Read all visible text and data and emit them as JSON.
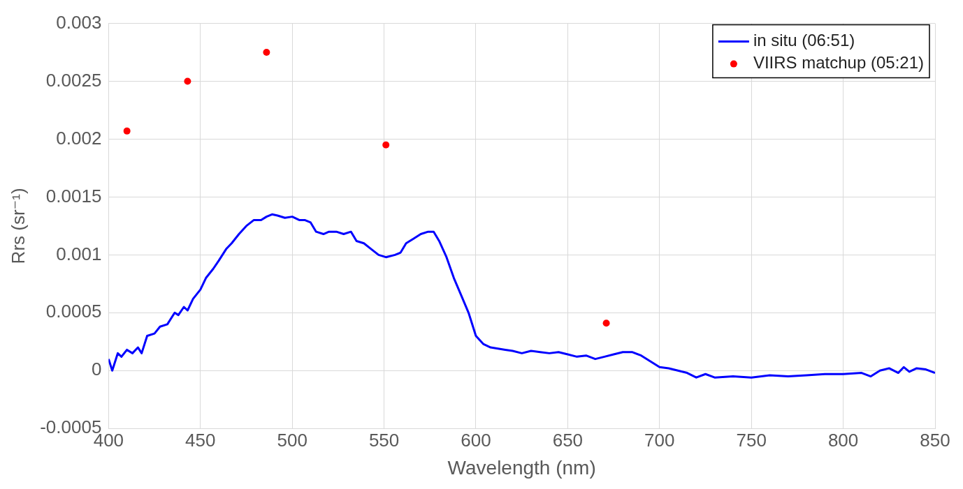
{
  "chart_data": {
    "type": "line",
    "xlabel": "Wavelength (nm)",
    "ylabel": "Rrs (sr⁻¹)",
    "xlim": [
      400,
      850
    ],
    "xticks": [
      400,
      450,
      500,
      550,
      600,
      650,
      700,
      750,
      800,
      850
    ],
    "ylim": [
      -0.0005,
      0.003
    ],
    "yticks": [
      -0.0005,
      0,
      0.0005,
      0.001,
      0.0015,
      0.002,
      0.0025,
      0.003
    ],
    "grid": true,
    "legend": "top right",
    "series": [
      {
        "name": "in situ (06:51)",
        "color": "#0000ff",
        "marker": "none",
        "line_style": "solid",
        "x": [
          400,
          402,
          405,
          407,
          410,
          413,
          416,
          418,
          421,
          425,
          428,
          432,
          436,
          438,
          441,
          443,
          446,
          450,
          453,
          457,
          460,
          464,
          467,
          471,
          475,
          479,
          483,
          486,
          489,
          492,
          496,
          500,
          504,
          507,
          510,
          513,
          517,
          520,
          524,
          528,
          532,
          535,
          539,
          543,
          547,
          551,
          556,
          559,
          562,
          566,
          570,
          574,
          577,
          580,
          584,
          588,
          592,
          596,
          600,
          604,
          608,
          612,
          616,
          620,
          625,
          630,
          635,
          640,
          645,
          650,
          655,
          660,
          665,
          670,
          675,
          680,
          685,
          690,
          695,
          700,
          705,
          710,
          715,
          720,
          725,
          730,
          740,
          750,
          760,
          770,
          780,
          790,
          800,
          810,
          815,
          820,
          825,
          830,
          833,
          836,
          840,
          845,
          850
        ],
        "values": [
          0.0001,
          0.0,
          0.00015,
          0.00012,
          0.00018,
          0.00015,
          0.0002,
          0.00015,
          0.0003,
          0.00032,
          0.00038,
          0.0004,
          0.0005,
          0.00048,
          0.00055,
          0.00052,
          0.00062,
          0.0007,
          0.0008,
          0.00088,
          0.00095,
          0.00105,
          0.0011,
          0.00118,
          0.00125,
          0.0013,
          0.0013,
          0.00133,
          0.00135,
          0.00134,
          0.00132,
          0.00133,
          0.0013,
          0.0013,
          0.00128,
          0.0012,
          0.00118,
          0.0012,
          0.0012,
          0.00118,
          0.0012,
          0.00112,
          0.0011,
          0.00105,
          0.001,
          0.00098,
          0.001,
          0.00102,
          0.0011,
          0.00114,
          0.00118,
          0.0012,
          0.0012,
          0.00112,
          0.00098,
          0.0008,
          0.00065,
          0.0005,
          0.0003,
          0.00023,
          0.0002,
          0.00019,
          0.00018,
          0.00017,
          0.00015,
          0.00017,
          0.00016,
          0.00015,
          0.00016,
          0.00014,
          0.00012,
          0.00013,
          0.0001,
          0.00012,
          0.00014,
          0.00016,
          0.00016,
          0.00013,
          8e-05,
          3e-05,
          2e-05,
          0.0,
          -2e-05,
          -6e-05,
          -3e-05,
          -6e-05,
          -5e-05,
          -6e-05,
          -4e-05,
          -5e-05,
          -4e-05,
          -3e-05,
          -3e-05,
          -2e-05,
          -5e-05,
          0.0,
          2e-05,
          -2e-05,
          3e-05,
          -1e-05,
          2e-05,
          1e-05,
          -2e-05
        ]
      },
      {
        "name": "VIIRS matchup (05:21)",
        "type": "scatter",
        "color": "#ff0000",
        "marker": "circle",
        "x": [
          410,
          443,
          486,
          551,
          671
        ],
        "values": [
          0.00207,
          0.0025,
          0.00275,
          0.00195,
          0.00041
        ]
      }
    ]
  }
}
